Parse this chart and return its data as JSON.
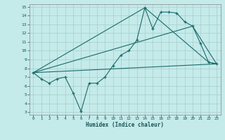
{
  "xlabel": "Humidex (Indice chaleur)",
  "bg_color": "#c5eaea",
  "grid_color": "#a8cccc",
  "line_color": "#1a6b6b",
  "xlim": [
    -0.5,
    23.5
  ],
  "ylim": [
    2.7,
    15.3
  ],
  "xticks": [
    0,
    1,
    2,
    3,
    4,
    5,
    6,
    7,
    8,
    9,
    10,
    11,
    12,
    13,
    14,
    15,
    16,
    17,
    18,
    19,
    20,
    21,
    22,
    23
  ],
  "yticks": [
    3,
    4,
    5,
    6,
    7,
    8,
    9,
    10,
    11,
    12,
    13,
    14,
    15
  ],
  "line1_x": [
    0,
    1,
    2,
    3,
    4,
    5,
    6,
    7,
    8,
    9,
    10,
    11,
    12,
    13,
    14,
    15,
    16,
    17,
    18,
    19,
    20,
    21,
    22,
    23
  ],
  "line1_y": [
    7.5,
    6.8,
    6.3,
    6.8,
    7.0,
    5.2,
    3.1,
    6.3,
    6.3,
    7.0,
    8.3,
    9.5,
    10.0,
    11.2,
    14.9,
    12.5,
    14.4,
    14.4,
    14.3,
    13.3,
    12.8,
    10.8,
    8.7,
    8.5
  ],
  "line2_x": [
    0,
    14,
    22,
    23
  ],
  "line2_y": [
    7.5,
    14.9,
    8.7,
    8.5
  ],
  "line3_x": [
    0,
    20,
    23
  ],
  "line3_y": [
    7.5,
    12.8,
    8.5
  ],
  "line4_x": [
    0,
    23
  ],
  "line4_y": [
    7.5,
    8.5
  ]
}
